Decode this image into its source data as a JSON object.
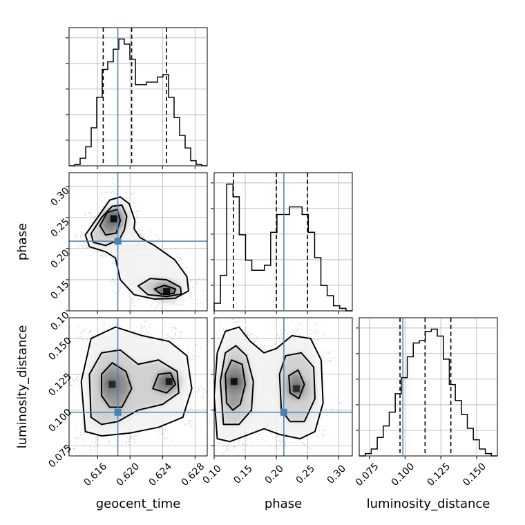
{
  "chart_data": {
    "type": "corner",
    "parameters": [
      "geocent_time",
      "phase",
      "luminosity_distance"
    ],
    "truths": {
      "geocent_time": 0.6185,
      "phase": 0.212,
      "luminosity_distance": 0.0985
    },
    "ranges": {
      "geocent_time": [
        0.6125,
        0.6295
      ],
      "phase": [
        0.1,
        0.322
      ],
      "luminosity_distance": [
        0.068,
        0.1645
      ]
    },
    "ticks": {
      "geocent_time": [
        0.616,
        0.62,
        0.624,
        0.628
      ],
      "phase": [
        0.1,
        0.15,
        0.2,
        0.25,
        0.3
      ],
      "luminosity_distance": [
        0.075,
        0.1,
        0.125,
        0.15
      ]
    },
    "tick_labels": {
      "geocent_time": [
        "0.616",
        "0.620",
        "0.624",
        "0.628"
      ],
      "phase": [
        "0.10",
        "0.15",
        "0.20",
        "0.25",
        "0.30"
      ],
      "luminosity_distance": [
        "0.075",
        "0.100",
        "0.125",
        "0.150"
      ]
    },
    "quantiles": {
      "geocent_time": [
        0.6167,
        0.6202,
        0.6245
      ],
      "phase": [
        0.131,
        0.2,
        0.25
      ],
      "luminosity_distance": [
        0.0965,
        0.114,
        0.132
      ]
    },
    "histograms": {
      "geocent_time": {
        "range": [
          0.6125,
          0.6295
        ],
        "counts": [
          0,
          0.5,
          3,
          7.5,
          15,
          27,
          38,
          41,
          46,
          50,
          48,
          42,
          32,
          32,
          33,
          33,
          35,
          36,
          27,
          19,
          12,
          7,
          2,
          0.5,
          0
        ]
      },
      "phase": {
        "range": [
          0.1,
          0.322
        ],
        "counts": [
          3,
          14,
          50,
          45,
          30,
          20,
          16,
          16,
          18,
          31,
          38,
          38,
          41,
          41,
          38,
          31,
          21,
          10,
          6,
          2,
          1,
          0
        ]
      },
      "luminosity_distance": {
        "range": [
          0.068,
          0.1645
        ],
        "counts": [
          0,
          1,
          3,
          8,
          13,
          19,
          27,
          34,
          43,
          49,
          50,
          54,
          55,
          52,
          42,
          31,
          24,
          18,
          12,
          7,
          3,
          1,
          0
        ]
      }
    },
    "contours": {
      "phase_vs_geocent_time": [
        {
          "level": "outer",
          "points": [
            [
              0.6145,
              0.222
            ],
            [
              0.616,
              0.25
            ],
            [
              0.6175,
              0.278
            ],
            [
              0.6188,
              0.283
            ],
            [
              0.6199,
              0.272
            ],
            [
              0.6206,
              0.245
            ],
            [
              0.6205,
              0.232
            ],
            [
              0.6212,
              0.218
            ],
            [
              0.623,
              0.205
            ],
            [
              0.6255,
              0.182
            ],
            [
              0.627,
              0.155
            ],
            [
              0.6272,
              0.132
            ],
            [
              0.6255,
              0.12
            ],
            [
              0.623,
              0.119
            ],
            [
              0.6205,
              0.126
            ],
            [
              0.6188,
              0.15
            ],
            [
              0.6182,
              0.185
            ],
            [
              0.617,
              0.195
            ],
            [
              0.615,
              0.203
            ]
          ]
        },
        {
          "level": "middle",
          "points": [
            [
              0.6152,
              0.224
            ],
            [
              0.6165,
              0.25
            ],
            [
              0.6178,
              0.268
            ],
            [
              0.619,
              0.27
            ],
            [
              0.6196,
              0.252
            ],
            [
              0.6193,
              0.23
            ],
            [
              0.6187,
              0.215
            ],
            [
              0.617,
              0.205
            ],
            [
              0.6155,
              0.21
            ]
          ]
        },
        {
          "level": "middle",
          "points": [
            [
              0.621,
              0.14
            ],
            [
              0.6225,
              0.152
            ],
            [
              0.6245,
              0.15
            ],
            [
              0.6262,
              0.138
            ],
            [
              0.6263,
              0.127
            ],
            [
              0.6245,
              0.123
            ],
            [
              0.6222,
              0.126
            ]
          ]
        },
        {
          "level": "inner",
          "points": [
            [
              0.6163,
              0.237
            ],
            [
              0.6172,
              0.258
            ],
            [
              0.6184,
              0.263
            ],
            [
              0.6188,
              0.245
            ],
            [
              0.6183,
              0.225
            ],
            [
              0.617,
              0.222
            ]
          ]
        },
        {
          "level": "inner",
          "points": [
            [
              0.623,
              0.135
            ],
            [
              0.6242,
              0.141
            ],
            [
              0.6256,
              0.135
            ],
            [
              0.6254,
              0.128
            ],
            [
              0.6238,
              0.127
            ]
          ]
        }
      ],
      "luminosity_distance_vs_geocent_time": [
        {
          "level": "outer",
          "points": [
            [
              0.6145,
              0.085
            ],
            [
              0.614,
              0.12
            ],
            [
              0.6152,
              0.15
            ],
            [
              0.6182,
              0.158
            ],
            [
              0.6215,
              0.152
            ],
            [
              0.6248,
              0.148
            ],
            [
              0.627,
              0.138
            ],
            [
              0.6276,
              0.115
            ],
            [
              0.6265,
              0.095
            ],
            [
              0.6235,
              0.088
            ],
            [
              0.62,
              0.084
            ],
            [
              0.6165,
              0.082
            ]
          ]
        },
        {
          "level": "middle",
          "points": [
            [
              0.6152,
              0.095
            ],
            [
              0.615,
              0.125
            ],
            [
              0.6165,
              0.14
            ],
            [
              0.6188,
              0.142
            ],
            [
              0.621,
              0.132
            ],
            [
              0.6235,
              0.135
            ],
            [
              0.6258,
              0.127
            ],
            [
              0.626,
              0.112
            ],
            [
              0.624,
              0.104
            ],
            [
              0.621,
              0.1
            ],
            [
              0.6185,
              0.092
            ],
            [
              0.6165,
              0.09
            ]
          ]
        },
        {
          "level": "inner",
          "points": [
            [
              0.6165,
              0.11
            ],
            [
              0.6165,
              0.125
            ],
            [
              0.6178,
              0.133
            ],
            [
              0.6195,
              0.127
            ],
            [
              0.6202,
              0.115
            ],
            [
              0.619,
              0.102
            ],
            [
              0.6175,
              0.102
            ]
          ]
        },
        {
          "level": "inner",
          "points": [
            [
              0.6228,
              0.115
            ],
            [
              0.6235,
              0.125
            ],
            [
              0.625,
              0.126
            ],
            [
              0.6256,
              0.118
            ],
            [
              0.6245,
              0.112
            ]
          ]
        }
      ],
      "luminosity_distance_vs_phase": [
        {
          "level": "outer",
          "points": [
            [
              0.105,
              0.08
            ],
            [
              0.1,
              0.11
            ],
            [
              0.105,
              0.14
            ],
            [
              0.118,
              0.155
            ],
            [
              0.14,
              0.158
            ],
            [
              0.158,
              0.148
            ],
            [
              0.18,
              0.14
            ],
            [
              0.2,
              0.143
            ],
            [
              0.225,
              0.152
            ],
            [
              0.255,
              0.15
            ],
            [
              0.272,
              0.135
            ],
            [
              0.275,
              0.105
            ],
            [
              0.262,
              0.085
            ],
            [
              0.238,
              0.08
            ],
            [
              0.205,
              0.083
            ],
            [
              0.18,
              0.087
            ],
            [
              0.15,
              0.082
            ],
            [
              0.125,
              0.078
            ]
          ]
        },
        {
          "level": "middle",
          "points": [
            [
              0.115,
              0.09
            ],
            [
              0.11,
              0.12
            ],
            [
              0.118,
              0.14
            ],
            [
              0.135,
              0.145
            ],
            [
              0.152,
              0.138
            ],
            [
              0.163,
              0.12
            ],
            [
              0.16,
              0.1
            ],
            [
              0.14,
              0.09
            ]
          ]
        },
        {
          "level": "middle",
          "points": [
            [
              0.208,
              0.1
            ],
            [
              0.205,
              0.125
            ],
            [
              0.215,
              0.138
            ],
            [
              0.24,
              0.14
            ],
            [
              0.26,
              0.13
            ],
            [
              0.262,
              0.108
            ],
            [
              0.245,
              0.092
            ],
            [
              0.222,
              0.092
            ]
          ]
        },
        {
          "level": "inner",
          "points": [
            [
              0.12,
              0.105
            ],
            [
              0.118,
              0.125
            ],
            [
              0.128,
              0.135
            ],
            [
              0.145,
              0.132
            ],
            [
              0.15,
              0.118
            ],
            [
              0.142,
              0.104
            ],
            [
              0.13,
              0.1
            ]
          ]
        },
        {
          "level": "inner",
          "points": [
            [
              0.222,
              0.112
            ],
            [
              0.22,
              0.124
            ],
            [
              0.235,
              0.128
            ],
            [
              0.245,
              0.118
            ],
            [
              0.236,
              0.108
            ]
          ]
        }
      ]
    },
    "density_peaks": {
      "phase_vs_geocent_time": [
        [
          0.618,
          0.248,
          1.0
        ],
        [
          0.6245,
          0.131,
          1.0
        ]
      ],
      "luminosity_distance_vs_geocent_time": [
        [
          0.6178,
          0.118,
          0.8
        ],
        [
          0.6248,
          0.12,
          0.9
        ]
      ],
      "luminosity_distance_vs_phase": [
        [
          0.132,
          0.12,
          1.0
        ],
        [
          0.232,
          0.115,
          0.75
        ]
      ]
    },
    "grid": true,
    "truth_color": "#4682b4",
    "line_color": "#000000"
  }
}
